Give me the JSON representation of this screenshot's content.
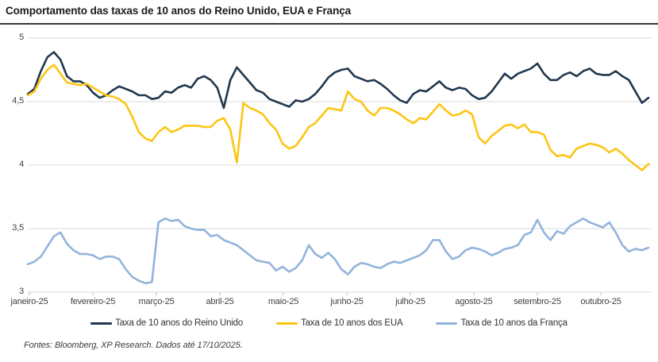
{
  "header": {
    "title": "Comportamento das taxas de 10 anos do Reino Unido, EUA e França"
  },
  "footer": {
    "source_note": "Fontes: Bloomberg, XP Research. Dados até 17/10/2025."
  },
  "colors": {
    "uk_line": "#21374D",
    "us_line": "#FDC513",
    "fr_line": "#92B4DB",
    "gridline": "#D9D9D9",
    "axis_tick": "#BFBFBF",
    "title_rule": "#3A3A3A"
  },
  "chart_data": {
    "type": "line",
    "title": "Comportamento das taxas de 10 anos do Reino Unido, EUA e França",
    "xlabel": "",
    "ylabel": "",
    "ylim": [
      3,
      5
    ],
    "grid": "horizontal",
    "legend_position": "bottom",
    "x_tick_labels": [
      "janeiro-25",
      "fevereiro-25",
      "março-25",
      "abril-25",
      "maio-25",
      "junho-25",
      "julho-25",
      "agosto-25",
      "setembro-25",
      "outubro-25"
    ],
    "y_tick_values": [
      5,
      4.5,
      4,
      3.5,
      3
    ],
    "y_tick_labels": [
      "5",
      "4,5",
      "4",
      "3,5",
      "3"
    ],
    "series": [
      {
        "name": "Taxa de 10 anos do Reino Unido",
        "color": "#21374D",
        "values": [
          4.56,
          4.6,
          4.74,
          4.85,
          4.89,
          4.83,
          4.7,
          4.66,
          4.66,
          4.63,
          4.57,
          4.53,
          4.55,
          4.59,
          4.62,
          4.6,
          4.58,
          4.55,
          4.55,
          4.52,
          4.53,
          4.58,
          4.57,
          4.61,
          4.63,
          4.61,
          4.68,
          4.7,
          4.67,
          4.61,
          4.45,
          4.67,
          4.77,
          4.71,
          4.65,
          4.59,
          4.57,
          4.52,
          4.5,
          4.48,
          4.46,
          4.51,
          4.5,
          4.52,
          4.56,
          4.62,
          4.69,
          4.73,
          4.75,
          4.76,
          4.7,
          4.68,
          4.66,
          4.67,
          4.64,
          4.6,
          4.55,
          4.51,
          4.49,
          4.56,
          4.59,
          4.58,
          4.62,
          4.66,
          4.61,
          4.59,
          4.61,
          4.6,
          4.55,
          4.52,
          4.53,
          4.58,
          4.65,
          4.72,
          4.68,
          4.72,
          4.74,
          4.76,
          4.8,
          4.72,
          4.67,
          4.67,
          4.71,
          4.73,
          4.7,
          4.74,
          4.76,
          4.72,
          4.71,
          4.71,
          4.74,
          4.7,
          4.67,
          4.58,
          4.49,
          4.53
        ]
      },
      {
        "name": "Taxa de 10 anos dos EUA",
        "color": "#FDC513",
        "values": [
          4.55,
          4.58,
          4.68,
          4.75,
          4.79,
          4.72,
          4.65,
          4.64,
          4.63,
          4.64,
          4.61,
          4.58,
          4.55,
          4.54,
          4.52,
          4.48,
          4.38,
          4.26,
          4.21,
          4.19,
          4.26,
          4.3,
          4.26,
          4.28,
          4.31,
          4.31,
          4.31,
          4.3,
          4.3,
          4.35,
          4.37,
          4.28,
          4.02,
          4.49,
          4.45,
          4.43,
          4.4,
          4.33,
          4.28,
          4.17,
          4.13,
          4.15,
          4.22,
          4.3,
          4.33,
          4.39,
          4.45,
          4.44,
          4.43,
          4.58,
          4.52,
          4.5,
          4.43,
          4.39,
          4.45,
          4.45,
          4.43,
          4.4,
          4.36,
          4.33,
          4.37,
          4.36,
          4.42,
          4.48,
          4.43,
          4.39,
          4.4,
          4.43,
          4.4,
          4.22,
          4.17,
          4.23,
          4.27,
          4.31,
          4.32,
          4.29,
          4.32,
          4.26,
          4.26,
          4.24,
          4.12,
          4.07,
          4.08,
          4.06,
          4.13,
          4.15,
          4.17,
          4.16,
          4.14,
          4.1,
          4.13,
          4.09,
          4.04,
          4.0,
          3.96,
          4.01
        ]
      },
      {
        "name": "Taxa de 10 anos da França",
        "color": "#92B4DB",
        "values": [
          3.22,
          3.24,
          3.28,
          3.36,
          3.44,
          3.47,
          3.38,
          3.33,
          3.3,
          3.3,
          3.29,
          3.26,
          3.28,
          3.28,
          3.26,
          3.18,
          3.12,
          3.09,
          3.07,
          3.08,
          3.55,
          3.58,
          3.56,
          3.57,
          3.52,
          3.5,
          3.49,
          3.49,
          3.44,
          3.45,
          3.41,
          3.39,
          3.37,
          3.33,
          3.29,
          3.25,
          3.24,
          3.23,
          3.17,
          3.2,
          3.16,
          3.19,
          3.25,
          3.37,
          3.3,
          3.27,
          3.31,
          3.26,
          3.18,
          3.14,
          3.2,
          3.23,
          3.22,
          3.2,
          3.19,
          3.22,
          3.24,
          3.23,
          3.25,
          3.27,
          3.29,
          3.33,
          3.41,
          3.41,
          3.32,
          3.26,
          3.28,
          3.33,
          3.35,
          3.34,
          3.32,
          3.29,
          3.31,
          3.34,
          3.35,
          3.37,
          3.45,
          3.47,
          3.57,
          3.47,
          3.41,
          3.48,
          3.46,
          3.52,
          3.55,
          3.58,
          3.55,
          3.53,
          3.51,
          3.55,
          3.47,
          3.37,
          3.32,
          3.34,
          3.33,
          3.35
        ]
      }
    ]
  }
}
